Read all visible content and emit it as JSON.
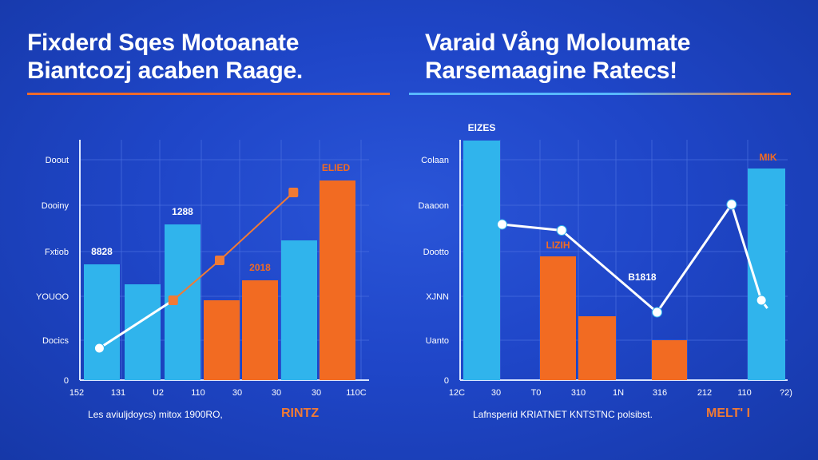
{
  "colors": {
    "background": "#1f46c8",
    "blue_bar": "#30b4ec",
    "orange_bar": "#f26b22",
    "line": "#ffffff",
    "line_orange": "#f07a35",
    "grid": "#4a6fe0",
    "axis": "#dbe6ff"
  },
  "chart_data": [
    {
      "type": "bar",
      "title": "Fixderd Sqes Motoanate Biantcozj acaben Raage.",
      "title_lines": [
        "Fixderd Sqes Motoanate",
        "Biantcozj acaben Raage."
      ],
      "y_tick_labels": [
        "0",
        "Docics",
        "YOUOO",
        "Fxtiob",
        "Dooiny",
        "Doout"
      ],
      "x_tick_labels": [
        "152",
        "131",
        "U2",
        "110",
        "30",
        "30",
        "30",
        "110C"
      ],
      "xlabel": "Les aviuljdoycs) mitox 1900RO,",
      "xlabel_accent": "RINTZ",
      "ylim": [
        0,
        6
      ],
      "grid": true,
      "bars": [
        {
          "value": 2.9,
          "color": "blue",
          "label": "8828"
        },
        {
          "value": 2.4,
          "color": "blue",
          "label": ""
        },
        {
          "value": 3.9,
          "color": "blue",
          "label": "1288"
        },
        {
          "value": 2.0,
          "color": "orange",
          "label": ""
        },
        {
          "value": 2.5,
          "color": "orange",
          "label": "2018"
        },
        {
          "value": 3.5,
          "color": "blue",
          "label": ""
        },
        {
          "value": 5.0,
          "color": "orange",
          "label": "ELIED"
        }
      ],
      "series": [
        {
          "name": "",
          "points": [
            [
              0.4,
              0.8
            ],
            [
              2.3,
              2.0
            ]
          ],
          "color": "white"
        },
        {
          "name": "",
          "points": [
            [
              2.3,
              2.0
            ],
            [
              3.5,
              3.0
            ],
            [
              5.4,
              4.7
            ]
          ],
          "color": "orange"
        }
      ]
    },
    {
      "type": "bar",
      "title": "Varaid Vång Moloumate Rarsemaagine Ratecs!",
      "title_lines": [
        "Varaid Vång Moloumate",
        "Rarsemaagine Ratecs!"
      ],
      "y_tick_labels": [
        "0",
        "Uanto",
        "XJNN",
        "Dootto",
        "Daaoon",
        "Colaan"
      ],
      "x_tick_labels": [
        "12C",
        "30",
        "T0",
        "310",
        "1N",
        "316",
        "212",
        "110",
        "?2)"
      ],
      "xlabel": "Lafnsperid KRIATNET KNTSTNC polsibst.",
      "xlabel_accent": "MELT' I",
      "ylim": [
        0,
        6
      ],
      "grid": true,
      "bars": [
        {
          "value": 6.0,
          "color": "blue",
          "label": "ElZES"
        },
        {
          "value": 3.1,
          "color": "orange",
          "label": "LIZIH"
        },
        {
          "value": 1.6,
          "color": "orange",
          "label": ""
        },
        {
          "value": 1.0,
          "color": "orange",
          "label": ""
        },
        {
          "value": 5.3,
          "color": "blue",
          "label": "MIK"
        }
      ],
      "series": [
        {
          "name": "",
          "points": [
            [
              0.65,
              3.9
            ],
            [
              1.65,
              3.75
            ],
            [
              3.25,
              1.7
            ],
            [
              4.5,
              4.4
            ],
            [
              5.0,
              2.0
            ],
            [
              5.1,
              1.8
            ]
          ],
          "color": "white"
        }
      ],
      "annotations": [
        {
          "text": "B1818",
          "at": [
            3.0,
            2.5
          ]
        }
      ]
    }
  ]
}
